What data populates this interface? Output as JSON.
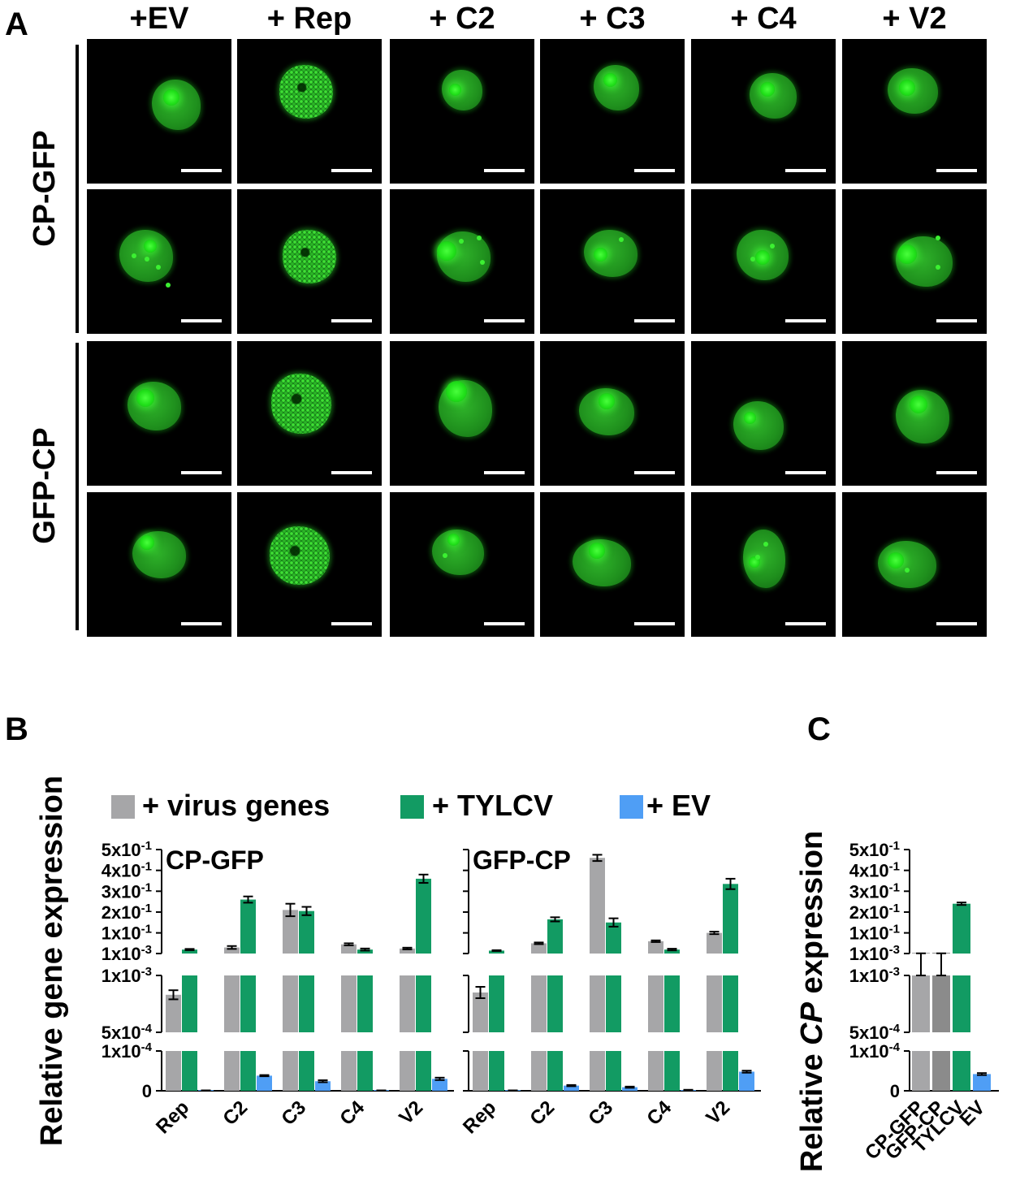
{
  "panel_labels": {
    "a": "A",
    "b": "B",
    "c": "C"
  },
  "panel_a": {
    "columns": [
      "+EV",
      "+ Rep",
      "+ C2",
      "+ C3",
      "+ C4",
      "+ V2"
    ],
    "rows": [
      "CP-GFP",
      "GFP-CP"
    ]
  },
  "panel_b": {
    "ylabel": "Relative gene expression",
    "legend": [
      "+ virus genes",
      "+ TYLCV",
      "+ EV"
    ],
    "colors": {
      "virus_genes": "#a6a6a8",
      "tylcv": "#129b63",
      "ev": "#4f9ef5"
    },
    "y_ticks": [
      "5x10-1",
      "4x10-1",
      "3x10-1",
      "2x10-1",
      "1x10-1",
      "1x10-3",
      "1x10-3",
      "5x10-4",
      "1x10-4",
      "0"
    ],
    "titles": [
      "CP-GFP",
      "GFP-CP"
    ]
  },
  "panel_c": {
    "ylabel_prefix": "Relative ",
    "ylabel_italic": "CP",
    "ylabel_suffix": " expression",
    "y_ticks": [
      "5x10-1",
      "4x10-1",
      "3x10-1",
      "2x10-1",
      "1x10-1",
      "1x10-3",
      "1x10-3",
      "5x10-4",
      "1x10-4",
      "0"
    ]
  },
  "chart_data": [
    {
      "type": "bar",
      "title": "CP-GFP",
      "categories": [
        "Rep",
        "C2",
        "C3",
        "C4",
        "V2"
      ],
      "scale": "broken",
      "segments": [
        [
          0,
          0.0001
        ],
        [
          0.0005,
          0.001
        ],
        [
          0.001,
          0.5
        ]
      ],
      "series": [
        {
          "name": "+ virus genes",
          "values": [
            0.00083,
            0.03,
            0.21,
            0.045,
            0.025
          ],
          "errors": [
            4e-05,
            0.007,
            0.03,
            0.005,
            0.004
          ]
        },
        {
          "name": "+ TYLCV",
          "values": [
            0.02,
            0.26,
            0.205,
            0.02,
            0.36
          ],
          "errors": [
            0.003,
            0.015,
            0.02,
            0.005,
            0.02
          ]
        },
        {
          "name": "+ EV",
          "values": [
            5e-07,
            3.8e-05,
            2.4e-05,
            5e-07,
            3e-05
          ],
          "errors": [
            5e-07,
            1.5e-06,
            2.5e-06,
            5e-07,
            3e-06
          ]
        }
      ]
    },
    {
      "type": "bar",
      "title": "GFP-CP",
      "categories": [
        "Rep",
        "C2",
        "C3",
        "C4",
        "V2"
      ],
      "scale": "broken",
      "segments": [
        [
          0,
          0.0001
        ],
        [
          0.0005,
          0.001
        ],
        [
          0.001,
          0.5
        ]
      ],
      "series": [
        {
          "name": "+ virus genes",
          "values": [
            0.00085,
            0.05,
            0.46,
            0.06,
            0.1
          ],
          "errors": [
            5e-05,
            0.004,
            0.015,
            0.004,
            0.006
          ]
        },
        {
          "name": "+ TYLCV",
          "values": [
            0.015,
            0.165,
            0.15,
            0.02,
            0.335
          ],
          "errors": [
            0.002,
            0.01,
            0.02,
            0.004,
            0.025
          ]
        },
        {
          "name": "+ EV",
          "values": [
            5e-07,
            1.3e-05,
            9e-06,
            2e-06,
            4.8e-05
          ],
          "errors": [
            5e-07,
            1.5e-06,
            1.5e-06,
            5e-07,
            2.5e-06
          ]
        }
      ]
    },
    {
      "type": "bar",
      "categories": [
        "CP-GFP",
        "GFP-CP",
        "TYLCV",
        "EV"
      ],
      "scale": "broken",
      "segments": [
        [
          0,
          0.0001
        ],
        [
          0.0005,
          0.001
        ],
        [
          0.001,
          0.5
        ]
      ],
      "values": [
        0.0015,
        0.0015,
        0.24,
        4.2e-05
      ],
      "errors": [
        0.0005,
        0.0005,
        0.006,
        2.5e-06
      ],
      "colors": [
        "#a6a6a8",
        "#8b8b8b",
        "#129b63",
        "#4f9ef5"
      ]
    }
  ]
}
